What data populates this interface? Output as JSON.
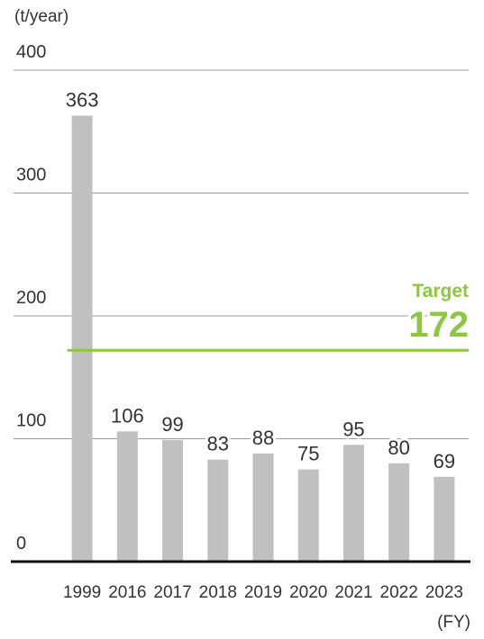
{
  "chart_data": {
    "type": "bar",
    "y_axis_label": "(t/year)",
    "x_axis_label": "(FY)",
    "categories": [
      "1999",
      "2016",
      "2017",
      "2018",
      "2019",
      "2020",
      "2021",
      "2022",
      "2023"
    ],
    "values": [
      363,
      106,
      99,
      83,
      88,
      75,
      95,
      80,
      69
    ],
    "color": "#c0c0c0",
    "ylim": [
      0,
      400
    ],
    "yticks": [
      0,
      100,
      200,
      300,
      400
    ],
    "grid": true,
    "target": {
      "label": "Target",
      "value": 172,
      "color": "#8dc63f"
    }
  }
}
